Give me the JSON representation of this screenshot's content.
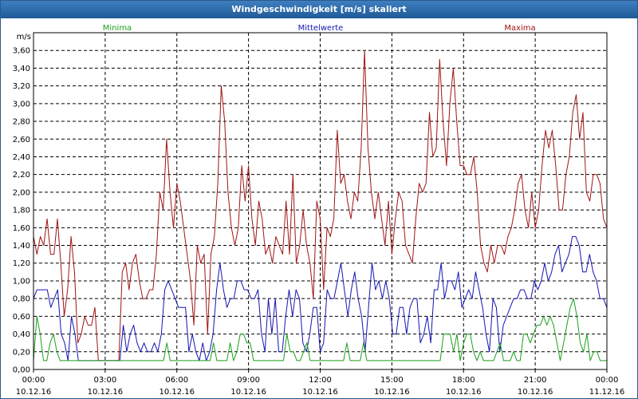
{
  "window": {
    "title": "Windgeschwindigkeit [m/s] skaliert"
  },
  "chart_data": {
    "type": "line",
    "title": "Windgeschwindigkeit [m/s] skaliert",
    "ylabel": "m/s",
    "ylim": [
      0,
      3.8
    ],
    "grid": true,
    "yticks": [
      "0,00",
      "0,20",
      "0,40",
      "0,60",
      "0,80",
      "1,00",
      "1,20",
      "1,40",
      "1,60",
      "1,80",
      "2,00",
      "2,20",
      "2,40",
      "2,60",
      "2,80",
      "3,00",
      "3,20",
      "3,40",
      "3,60"
    ],
    "xticks": [
      {
        "time": "00:00",
        "date": "10.12.16"
      },
      {
        "time": "03:00",
        "date": "10.12.16"
      },
      {
        "time": "06:00",
        "date": "10.12.16"
      },
      {
        "time": "09:00",
        "date": "10.12.16"
      },
      {
        "time": "12:00",
        "date": "10.12.16"
      },
      {
        "time": "15:00",
        "date": "10.12.16"
      },
      {
        "time": "18:00",
        "date": "10.12.16"
      },
      {
        "time": "21:00",
        "date": "10.12.16"
      },
      {
        "time": "00:00",
        "date": "11.12.16"
      }
    ],
    "x_unit": "hours",
    "xlim": [
      0,
      24
    ],
    "series": [
      {
        "name": "Maxima",
        "color": "#a01414",
        "values": [
          1.5,
          1.3,
          1.5,
          1.4,
          1.7,
          1.3,
          1.3,
          1.7,
          1.2,
          0.6,
          0.9,
          1.5,
          1.1,
          0.3,
          0.4,
          0.6,
          0.5,
          0.5,
          0.7,
          0.1,
          0.1,
          0.1,
          0.1,
          0.1,
          0.1,
          0.1,
          1.1,
          1.2,
          0.9,
          1.2,
          1.3,
          1.0,
          0.8,
          0.8,
          0.9,
          0.9,
          1.3,
          2.0,
          1.8,
          2.6,
          2.0,
          1.6,
          2.1,
          1.9,
          1.6,
          1.3,
          1.0,
          0.5,
          1.4,
          1.2,
          1.3,
          0.4,
          1.3,
          1.5,
          2.1,
          3.2,
          2.8,
          2.0,
          1.6,
          1.4,
          1.6,
          2.3,
          1.9,
          2.3,
          1.7,
          1.4,
          1.9,
          1.7,
          1.3,
          1.4,
          1.2,
          1.5,
          1.4,
          1.3,
          1.9,
          1.3,
          2.2,
          1.2,
          1.4,
          1.8,
          1.4,
          1.2,
          0.8,
          1.9,
          1.7,
          0.9,
          1.6,
          1.5,
          1.7,
          2.7,
          2.1,
          2.2,
          1.9,
          1.7,
          2.0,
          1.9,
          2.5,
          3.6,
          2.5,
          2.0,
          1.7,
          2.0,
          1.7,
          1.4,
          1.9,
          1.3,
          1.7,
          2.0,
          1.9,
          1.4,
          1.3,
          1.2,
          1.7,
          2.1,
          2.0,
          2.1,
          2.9,
          2.4,
          2.5,
          3.5,
          2.8,
          2.3,
          3.0,
          3.4,
          2.8,
          2.3,
          2.3,
          2.2,
          2.2,
          2.4,
          2.0,
          1.4,
          1.2,
          1.1,
          1.4,
          1.2,
          1.4,
          1.4,
          1.3,
          1.5,
          1.6,
          1.8,
          2.1,
          2.2,
          1.8,
          1.6,
          2.0,
          1.6,
          1.8,
          2.3,
          2.7,
          2.5,
          2.7,
          2.3,
          1.8,
          1.8,
          2.2,
          2.4,
          2.9,
          3.1,
          2.6,
          2.9,
          2.0,
          1.9,
          2.2,
          2.2,
          2.1,
          1.7,
          1.6
        ]
      },
      {
        "name": "Mittelwerte",
        "color": "#1414b4",
        "values": [
          0.8,
          0.9,
          0.9,
          0.9,
          0.9,
          0.7,
          0.8,
          0.9,
          0.4,
          0.3,
          0.1,
          0.6,
          0.4,
          0.1,
          0.1,
          0.1,
          0.1,
          0.1,
          0.1,
          0.1,
          0.1,
          0.1,
          0.1,
          0.1,
          0.1,
          0.1,
          0.5,
          0.2,
          0.4,
          0.5,
          0.3,
          0.2,
          0.3,
          0.2,
          0.2,
          0.3,
          0.2,
          0.4,
          0.9,
          1.0,
          0.9,
          0.8,
          0.7,
          0.7,
          0.7,
          0.2,
          0.4,
          0.2,
          0.1,
          0.3,
          0.1,
          0.2,
          0.4,
          0.9,
          1.2,
          0.9,
          0.7,
          0.8,
          0.8,
          1.0,
          1.0,
          0.9,
          0.9,
          0.8,
          0.8,
          0.9,
          0.4,
          0.2,
          0.8,
          0.4,
          0.8,
          0.2,
          0.2,
          0.6,
          0.9,
          0.6,
          0.9,
          0.8,
          0.3,
          0.2,
          0.4,
          0.7,
          0.7,
          0.2,
          0.3,
          0.9,
          0.8,
          0.8,
          1.0,
          1.2,
          0.9,
          0.6,
          0.9,
          1.1,
          0.8,
          0.6,
          0.2,
          0.7,
          1.2,
          0.9,
          1.0,
          0.8,
          1.0,
          0.8,
          0.4,
          0.4,
          0.7,
          0.7,
          0.4,
          0.7,
          0.8,
          0.8,
          0.3,
          0.4,
          0.6,
          0.3,
          0.9,
          0.9,
          1.2,
          0.8,
          1.0,
          1.0,
          0.9,
          1.1,
          0.7,
          0.8,
          0.9,
          0.8,
          1.1,
          0.9,
          0.7,
          0.4,
          0.2,
          0.8,
          0.7,
          0.2,
          0.5,
          0.6,
          0.7,
          0.8,
          0.8,
          0.9,
          0.9,
          0.8,
          0.8,
          1.0,
          0.9,
          1.0,
          1.2,
          1.0,
          1.1,
          1.3,
          1.4,
          1.1,
          1.2,
          1.3,
          1.5,
          1.5,
          1.4,
          1.1,
          1.1,
          1.3,
          1.1,
          1.0,
          0.8,
          0.8,
          0.7
        ]
      },
      {
        "name": "Minima",
        "color": "#1aa01a",
        "values": [
          0.1,
          0.6,
          0.4,
          0.1,
          0.1,
          0.3,
          0.4,
          0.2,
          0.1,
          0.1,
          0.1,
          0.1,
          0.1,
          0.1,
          0.1,
          0.1,
          0.1,
          0.1,
          0.1,
          0.1,
          0.1,
          0.1,
          0.1,
          0.1,
          0.1,
          0.1,
          0.1,
          0.1,
          0.1,
          0.1,
          0.1,
          0.1,
          0.1,
          0.1,
          0.1,
          0.1,
          0.1,
          0.1,
          0.1,
          0.1,
          0.3,
          0.1,
          0.1,
          0.1,
          0.1,
          0.1,
          0.1,
          0.1,
          0.1,
          0.1,
          0.1,
          0.1,
          0.1,
          0.1,
          0.3,
          0.1,
          0.1,
          0.1,
          0.1,
          0.3,
          0.1,
          0.2,
          0.4,
          0.4,
          0.3,
          0.3,
          0.1,
          0.1,
          0.1,
          0.1,
          0.1,
          0.1,
          0.1,
          0.1,
          0.1,
          0.1,
          0.4,
          0.2,
          0.2,
          0.1,
          0.1,
          0.2,
          0.3,
          0.1,
          0.1,
          0.1,
          0.1,
          0.1,
          0.1,
          0.1,
          0.1,
          0.1,
          0.1,
          0.1,
          0.3,
          0.1,
          0.1,
          0.1,
          0.1,
          0.3,
          0.1,
          0.1,
          0.1,
          0.1,
          0.1,
          0.1,
          0.1,
          0.1,
          0.1,
          0.1,
          0.1,
          0.1,
          0.1,
          0.1,
          0.1,
          0.1,
          0.1,
          0.1,
          0.1,
          0.1,
          0.1,
          0.1,
          0.1,
          0.4,
          0.4,
          0.4,
          0.2,
          0.4,
          0.1,
          0.3,
          0.4,
          0.4,
          0.2,
          0.1,
          0.2,
          0.1,
          0.1,
          0.1,
          0.1,
          0.2,
          0.3,
          0.1,
          0.1,
          0.1,
          0.2,
          0.1,
          0.1,
          0.4,
          0.4,
          0.3,
          0.4,
          0.5,
          0.5,
          0.6,
          0.5,
          0.6,
          0.5,
          0.3,
          0.1,
          0.3,
          0.5,
          0.7,
          0.8,
          0.6,
          0.3,
          0.2,
          0.4,
          0.1,
          0.2,
          0.2,
          0.1,
          0.1,
          0.1
        ]
      }
    ],
    "legend": [
      {
        "label": "Minima",
        "color": "#1aa01a",
        "position": "left"
      },
      {
        "label": "Mittelwerte",
        "color": "#1414b4",
        "position": "center"
      },
      {
        "label": "Maxima",
        "color": "#a01414",
        "position": "right"
      }
    ]
  }
}
